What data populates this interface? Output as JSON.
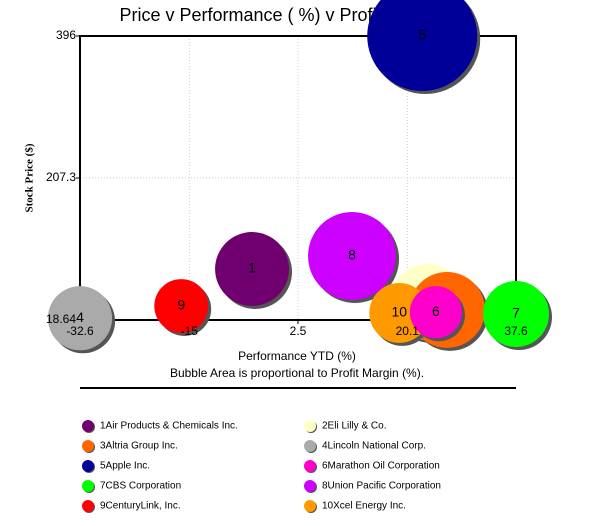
{
  "chart_data": {
    "type": "bubble",
    "title": "Price v Performance ( %) v Profit Margin (%)",
    "x_label": "Performance YTD (%)",
    "y_label": "Stock Price ($)",
    "note": "Bubble Area is proportional to Profit Margin (%).",
    "xlim": [
      -32.6,
      37.6
    ],
    "xticks": [
      -32.6,
      -15,
      2.5,
      20.1,
      37.6
    ],
    "ylim": [
      18.64,
      396
    ],
    "yticks": [
      18.64,
      207.3,
      396
    ],
    "grid": true,
    "series": [
      {
        "name": "1Air Products & Chemicals Inc.",
        "label": "1",
        "color": "#700070",
        "x": -4.9,
        "y": 86.4,
        "size": 11.3
      },
      {
        "name": "2Eli Lilly & Co.",
        "label": "2",
        "color": "#ffffc8",
        "x": 23.4,
        "y": 42.6,
        "size": 11.9
      },
      {
        "name": "3Altria Group Inc.",
        "label": "3",
        "color": "#ff6600",
        "x": 26.5,
        "y": 32,
        "size": 11.9
      },
      {
        "name": "4Lincoln National Corp.",
        "label": "4",
        "color": "#aaaaaa",
        "x": -32.6,
        "y": 21,
        "size": 8.5
      },
      {
        "name": "5Apple Inc.",
        "label": "5",
        "color": "#000099",
        "x": 22.5,
        "y": 396,
        "size": 25
      },
      {
        "name": "6Marathon Oil Corporation",
        "label": "6",
        "color": "#ff00cc",
        "x": 24.7,
        "y": 29,
        "size": 5.6
      },
      {
        "name": "7CBS Corporation",
        "label": "7",
        "color": "#00ff00",
        "x": 37.6,
        "y": 26.6,
        "size": 9
      },
      {
        "name": "8Union Pacific Corporation",
        "label": "8",
        "color": "#cc00ff",
        "x": 11.2,
        "y": 103.7,
        "size": 16
      },
      {
        "name": "9CenturyLink, Inc.",
        "label": "9",
        "color": "#ff0000",
        "x": -16.3,
        "y": 37.2,
        "size": 6
      },
      {
        "name": "10Xcel Energy Inc.",
        "label": "10",
        "color": "#ff9900",
        "x": 18.8,
        "y": 28,
        "size": 7.4
      }
    ]
  }
}
